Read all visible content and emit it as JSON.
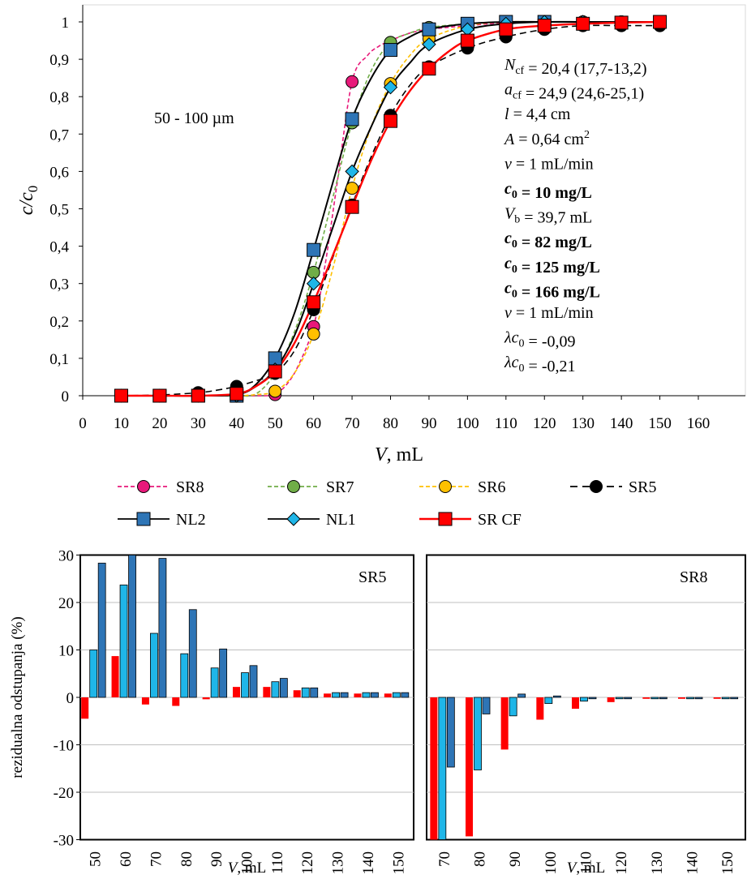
{
  "chart_data": [
    {
      "type": "line",
      "xlabel": "V, mL",
      "ylabel": "c/c0",
      "xlim": [
        0,
        160
      ],
      "ylim": [
        0,
        1
      ],
      "x_ticks": [
        "0",
        "10",
        "20",
        "30",
        "40",
        "50",
        "60",
        "70",
        "80",
        "90",
        "100",
        "110",
        "120",
        "130",
        "140",
        "150",
        "160"
      ],
      "y_ticks": [
        "0",
        "0,1",
        "0,2",
        "0,3",
        "0,4",
        "0,5",
        "0,6",
        "0,7",
        "0,8",
        "0,9",
        "1"
      ],
      "grid": false,
      "legend_position": "bottom",
      "annotation_range": "50 - 100 µm",
      "annotations": [
        {
          "parts": [
            {
              "t": "N",
              "i": true
            },
            {
              "t": "cf",
              "sub": true
            },
            {
              "t": " = 20,4 (17,7-13,2)"
            }
          ],
          "color": "#000000"
        },
        {
          "parts": [
            {
              "t": "a",
              "i": true
            },
            {
              "t": "cf",
              "sub": true
            },
            {
              "t": " = 24,9 (24,6-25,1)"
            }
          ],
          "color": "#000000"
        },
        {
          "parts": [
            {
              "t": "l",
              "i": true
            },
            {
              "t": " = 4,4 cm"
            }
          ],
          "color": "#000000"
        },
        {
          "parts": [
            {
              "t": "A",
              "i": true
            },
            {
              "t": " = 0,64 cm"
            },
            {
              "t": "2",
              "sup": true
            }
          ],
          "color": "#000000"
        },
        {
          "parts": [
            {
              "t": "v",
              "i": true
            },
            {
              "t": " = 1 mL/min"
            }
          ],
          "color": "#000000"
        },
        {
          "parts": [
            {
              "t": "c",
              "i": true,
              "b": true
            },
            {
              "t": "0",
              "sub": true,
              "b": true
            },
            {
              "t": " = 10 mg/L",
              "b": true
            }
          ],
          "color": "#000000"
        },
        {
          "parts": [
            {
              "t": "V",
              "i": true
            },
            {
              "t": "b",
              "sub": true
            },
            {
              "t": " = 39,7 mL"
            }
          ],
          "color": "#000000"
        },
        {
          "parts": [
            {
              "t": "c",
              "i": true,
              "b": true
            },
            {
              "t": "0",
              "sub": true,
              "b": true
            },
            {
              "t": " = 82 mg/L",
              "b": true
            }
          ],
          "color": "#FFC000"
        },
        {
          "parts": [
            {
              "t": "c",
              "i": true,
              "b": true
            },
            {
              "t": "0",
              "sub": true,
              "b": true
            },
            {
              "t": " = 125 mg/L",
              "b": true
            }
          ],
          "color": "#00B050"
        },
        {
          "parts": [
            {
              "t": "c",
              "i": true,
              "b": true
            },
            {
              "t": "0",
              "sub": true,
              "b": true
            },
            {
              "t": " = 166 mg/L",
              "b": true
            }
          ],
          "color": "#E8197A"
        },
        {
          "parts": [
            {
              "t": "v",
              "i": true
            },
            {
              "t": " = 1 mL/min"
            }
          ],
          "color": "#000000"
        },
        {
          "parts": [
            {
              "t": "λc",
              "i": true
            },
            {
              "t": "0",
              "sub": true
            },
            {
              "t": " = -0,09"
            }
          ],
          "color": "#1FB6E8"
        },
        {
          "parts": [
            {
              "t": "λc",
              "i": true
            },
            {
              "t": "0",
              "sub": true
            },
            {
              "t": " = -0,21"
            }
          ],
          "color": "#2E75B6"
        }
      ],
      "series": [
        {
          "name": "SR8",
          "color": "#E8197A",
          "line": "dashed",
          "marker": "circle",
          "marker_fill": "#E8197A",
          "x": [
            10,
            20,
            30,
            40,
            50,
            60,
            70,
            80,
            90,
            100,
            110,
            120,
            130,
            140,
            150
          ],
          "y": [
            0,
            0,
            0,
            0,
            0.003,
            0.185,
            0.84,
            0.945,
            0.98,
            0.99,
            1,
            1,
            1,
            1,
            1
          ],
          "curve_x": [
            10,
            20,
            30,
            40,
            48,
            50,
            53,
            56,
            60,
            63,
            66,
            70,
            74,
            77,
            80,
            85,
            90,
            100,
            110,
            120,
            130,
            140,
            150
          ],
          "curve_y": [
            0,
            0,
            0,
            0,
            0,
            0.003,
            0.03,
            0.08,
            0.185,
            0.35,
            0.56,
            0.84,
            0.91,
            0.935,
            0.95,
            0.97,
            0.98,
            0.99,
            0.998,
            1,
            1,
            1,
            1
          ]
        },
        {
          "name": "SR7",
          "color": "#70AD47",
          "line": "dashed",
          "marker": "circle",
          "marker_fill": "#70AD47",
          "x": [
            10,
            20,
            30,
            40,
            50,
            60,
            70,
            80,
            90,
            100,
            110,
            120,
            130,
            140,
            150
          ],
          "y": [
            0,
            0,
            0,
            0,
            0.06,
            0.33,
            0.73,
            0.945,
            0.985,
            0.995,
            1,
            1,
            1,
            1,
            1
          ],
          "curve_x": [
            10,
            20,
            30,
            40,
            45,
            50,
            55,
            60,
            65,
            70,
            75,
            80,
            85,
            90,
            100,
            110,
            120,
            130,
            140,
            150
          ],
          "curve_y": [
            0,
            0,
            0,
            0,
            0.005,
            0.06,
            0.17,
            0.33,
            0.53,
            0.73,
            0.87,
            0.945,
            0.97,
            0.985,
            0.995,
            1,
            1,
            1,
            1,
            1
          ]
        },
        {
          "name": "SR6",
          "color": "#FFC000",
          "line": "dashed",
          "marker": "circle",
          "marker_fill": "#FFC000",
          "x": [
            10,
            20,
            30,
            40,
            50,
            60,
            70,
            80,
            90,
            100,
            110,
            120,
            130,
            140,
            150
          ],
          "y": [
            0,
            0,
            0,
            0,
            0.012,
            0.165,
            0.555,
            0.835,
            0.955,
            0.99,
            1,
            1,
            1,
            1,
            1
          ],
          "curve_x": [
            10,
            20,
            30,
            40,
            45,
            50,
            55,
            60,
            65,
            70,
            75,
            80,
            85,
            90,
            100,
            110,
            120,
            130,
            140,
            150
          ],
          "curve_y": [
            0,
            0,
            0,
            0,
            0.003,
            0.012,
            0.06,
            0.165,
            0.34,
            0.555,
            0.72,
            0.835,
            0.91,
            0.955,
            0.99,
            1,
            1,
            1,
            1,
            1
          ]
        },
        {
          "name": "SR5",
          "color": "#000000",
          "line": "dashed",
          "marker": "circle",
          "marker_fill": "#000000",
          "x": [
            10,
            20,
            30,
            40,
            50,
            60,
            70,
            80,
            90,
            100,
            110,
            120,
            130,
            140,
            150
          ],
          "y": [
            0,
            0,
            0.008,
            0.025,
            0.06,
            0.23,
            0.51,
            0.75,
            0.88,
            0.93,
            0.96,
            0.98,
            0.99,
            0.99,
            0.99
          ],
          "curve_x": [
            10,
            20,
            30,
            35,
            40,
            45,
            50,
            55,
            60,
            65,
            70,
            75,
            80,
            85,
            90,
            100,
            110,
            120,
            130,
            140,
            150
          ],
          "curve_y": [
            0,
            0.002,
            0.008,
            0.015,
            0.025,
            0.04,
            0.06,
            0.12,
            0.23,
            0.37,
            0.51,
            0.64,
            0.75,
            0.83,
            0.88,
            0.93,
            0.96,
            0.98,
            0.99,
            0.99,
            0.99
          ]
        },
        {
          "name": "NL2",
          "color": "#000000",
          "line": "solid",
          "marker": "square",
          "marker_fill": "#2E75B6",
          "x": [
            10,
            20,
            30,
            40,
            50,
            60,
            70,
            80,
            90,
            100,
            110,
            120
          ],
          "y": [
            0,
            0,
            0,
            0,
            0.1,
            0.39,
            0.74,
            0.925,
            0.98,
            0.995,
            1,
            1
          ],
          "curve_x": [
            10,
            20,
            30,
            40,
            45,
            50,
            55,
            60,
            65,
            70,
            75,
            80,
            85,
            90,
            100,
            110,
            120,
            130,
            140,
            150
          ],
          "curve_y": [
            0,
            0,
            0,
            0.003,
            0.03,
            0.1,
            0.22,
            0.39,
            0.57,
            0.74,
            0.85,
            0.925,
            0.96,
            0.98,
            0.995,
            1,
            1,
            1,
            1,
            1
          ]
        },
        {
          "name": "NL1",
          "color": "#000000",
          "line": "solid",
          "marker": "diamond",
          "marker_fill": "#1FB6E8",
          "x": [
            10,
            20,
            30,
            40,
            50,
            60,
            70,
            80,
            90,
            100,
            110,
            120,
            130
          ],
          "y": [
            0,
            0,
            0,
            0,
            0.07,
            0.3,
            0.6,
            0.825,
            0.94,
            0.98,
            0.995,
            1,
            1
          ],
          "curve_x": [
            10,
            20,
            30,
            40,
            45,
            50,
            55,
            60,
            65,
            70,
            75,
            80,
            85,
            90,
            100,
            110,
            120,
            130,
            140,
            150
          ],
          "curve_y": [
            0,
            0,
            0,
            0.003,
            0.025,
            0.07,
            0.16,
            0.3,
            0.45,
            0.6,
            0.72,
            0.825,
            0.89,
            0.94,
            0.98,
            0.995,
            1,
            1,
            1,
            1
          ]
        },
        {
          "name": "SR CF",
          "color": "#FF0000",
          "line": "solid",
          "marker": "square",
          "marker_fill": "#FF0000",
          "x": [
            10,
            20,
            30,
            40,
            50,
            60,
            70,
            80,
            90,
            100,
            110,
            120,
            130,
            140,
            150
          ],
          "y": [
            0,
            0,
            0,
            0.005,
            0.065,
            0.25,
            0.505,
            0.735,
            0.875,
            0.95,
            0.98,
            0.99,
            0.995,
            0.998,
            1
          ],
          "curve_x": [
            10,
            20,
            30,
            40,
            45,
            50,
            55,
            60,
            65,
            70,
            75,
            80,
            85,
            90,
            95,
            100,
            110,
            120,
            130,
            140,
            150
          ],
          "curve_y": [
            0,
            0,
            0,
            0.005,
            0.025,
            0.065,
            0.14,
            0.25,
            0.375,
            0.505,
            0.63,
            0.735,
            0.815,
            0.875,
            0.92,
            0.95,
            0.98,
            0.99,
            0.995,
            0.998,
            1
          ]
        }
      ]
    },
    {
      "type": "bar",
      "ylabel": "rezidualna odstupanja (%)",
      "xlabel": "V, mL",
      "ylim": [
        -30,
        30
      ],
      "y_ticks": [
        "30",
        "20",
        "10",
        "0",
        "-10",
        "-20",
        "-30"
      ],
      "grid": true,
      "panel_label": "SR5",
      "categories": [
        "50",
        "60",
        "70",
        "80",
        "90",
        "100",
        "110",
        "120",
        "130",
        "140",
        "150"
      ],
      "series": [
        {
          "color": "#FF0000",
          "values": [
            -4.5,
            8.7,
            -1.5,
            -1.8,
            -0.4,
            2.2,
            2.2,
            1.5,
            0.8,
            0.8,
            0.8
          ]
        },
        {
          "color": "#1FB6E8",
          "values": [
            10,
            23.7,
            13.5,
            9.2,
            6.2,
            5.2,
            3.3,
            2,
            1,
            1,
            1
          ]
        },
        {
          "color": "#2E75B6",
          "values": [
            28.3,
            30,
            29.3,
            18.5,
            10.2,
            6.7,
            4,
            2,
            1,
            1,
            1
          ]
        }
      ]
    },
    {
      "type": "bar",
      "xlabel": "V, mL",
      "ylim": [
        -30,
        30
      ],
      "grid": true,
      "panel_label": "SR8",
      "categories": [
        "70",
        "80",
        "90",
        "100",
        "110",
        "120",
        "130",
        "140",
        "150"
      ],
      "series": [
        {
          "color": "#FF0000",
          "values": [
            -30,
            -29.3,
            -11,
            -4.7,
            -2.4,
            -1,
            -0.3,
            -0.3,
            -0.3
          ]
        },
        {
          "color": "#1FB6E8",
          "values": [
            -30,
            -15.3,
            -3.9,
            -1.3,
            -0.8,
            -0.3,
            -0.3,
            -0.3,
            -0.3
          ]
        },
        {
          "color": "#2E75B6",
          "values": [
            -14.7,
            -3.5,
            0.7,
            0.3,
            -0.3,
            -0.3,
            -0.3,
            -0.3,
            -0.3
          ]
        }
      ]
    }
  ]
}
